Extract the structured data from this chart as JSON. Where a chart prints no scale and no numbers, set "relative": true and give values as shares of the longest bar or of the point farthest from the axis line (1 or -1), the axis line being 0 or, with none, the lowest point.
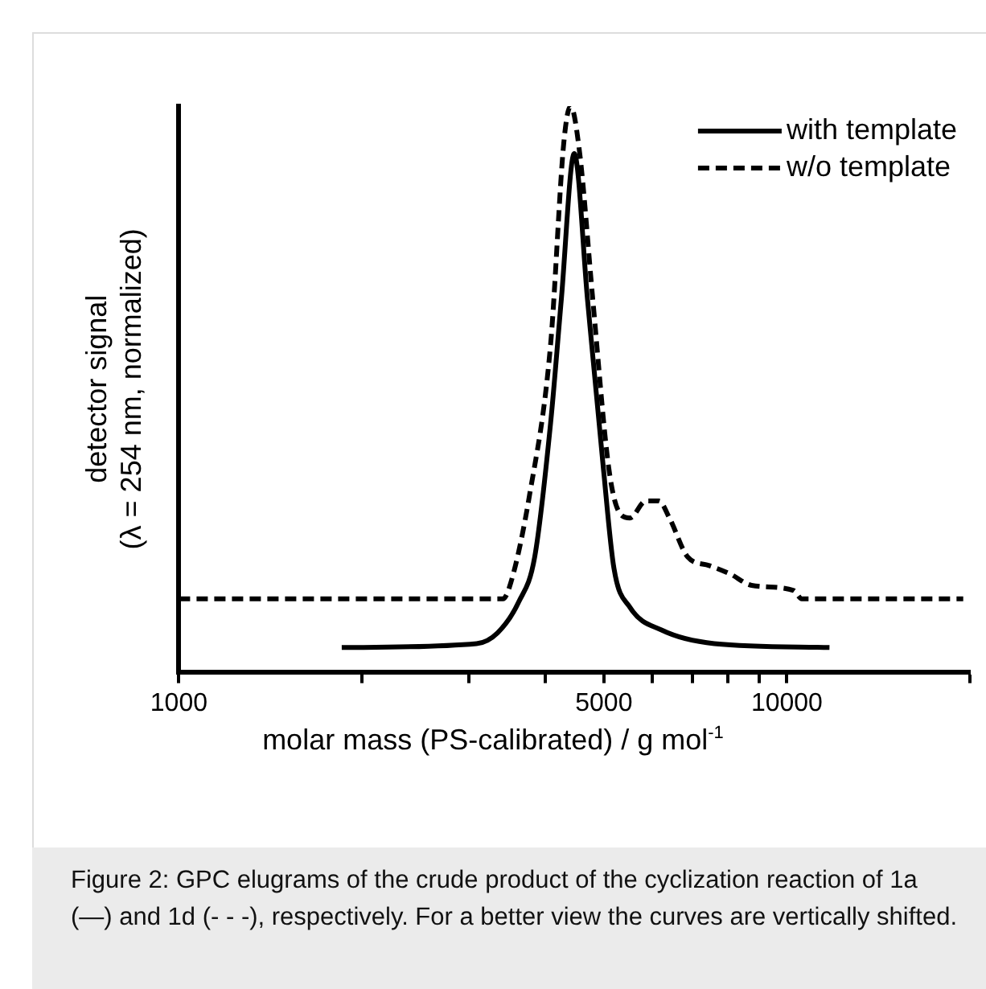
{
  "chart_data": {
    "type": "line",
    "relative": true,
    "log": "x",
    "xlabel": "molar mass (PS-calibrated) / g mol$^{-1}$",
    "ylabel": "detector signal\n(λ = 254 nm, normalized)",
    "xlim": [
      1000,
      20000
    ],
    "xticks": [
      1000,
      {
        "value": 2000,
        "label": null
      },
      {
        "value": 3000,
        "label": null
      },
      {
        "value": 4000,
        "label": null
      },
      5000,
      {
        "value": 6000,
        "label": null
      },
      {
        "value": 7000,
        "label": null
      },
      {
        "value": 8000,
        "label": null
      },
      {
        "value": 9000,
        "label": null
      },
      10000,
      {
        "value": 20000,
        "label": null
      }
    ],
    "grid": false,
    "legend": "top right",
    "marker": "none",
    "series": [
      {
        "name": "with template",
        "color": "#000000",
        "line_style": "solid",
        "x": [
          1853,
          3088,
          3343,
          3624,
          3848,
          4087,
          4256,
          4470,
          4700,
          4990,
          5195,
          5520,
          6220,
          7600,
          11750
        ],
        "values": [
          0.043,
          0.05,
          0.069,
          0.124,
          0.203,
          0.44,
          0.658,
          0.916,
          0.658,
          0.361,
          0.183,
          0.114,
          0.074,
          0.05,
          0.043
        ]
      },
      {
        "name": "w/o template",
        "color": "#000000",
        "line_style": "dashed",
        "x": [
          1000,
          3412,
          3516,
          3773,
          4087,
          4297,
          4408,
          4564,
          4795,
          5093,
          5300,
          5520,
          5860,
          6160,
          6410,
          6870,
          7450,
          8070,
          8750,
          10260,
          10580,
          19500
        ],
        "values": [
          0.129,
          0.129,
          0.158,
          0.312,
          0.579,
          0.936,
          1.0,
          0.916,
          0.658,
          0.361,
          0.282,
          0.272,
          0.302,
          0.302,
          0.272,
          0.203,
          0.188,
          0.173,
          0.153,
          0.144,
          0.129,
          0.129
        ]
      }
    ],
    "annotations": [
      "Figure 2: GPC elugrams of the crude product of the cyclization reaction of 1a (—) and 1d (- - -), respectively. For a better view the curves are vertically shifted."
    ]
  }
}
